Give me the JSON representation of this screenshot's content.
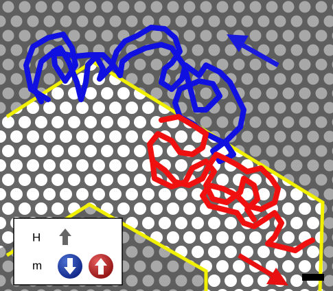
{
  "legend": {
    "field_label": "H",
    "moment_label": "m"
  }
}
